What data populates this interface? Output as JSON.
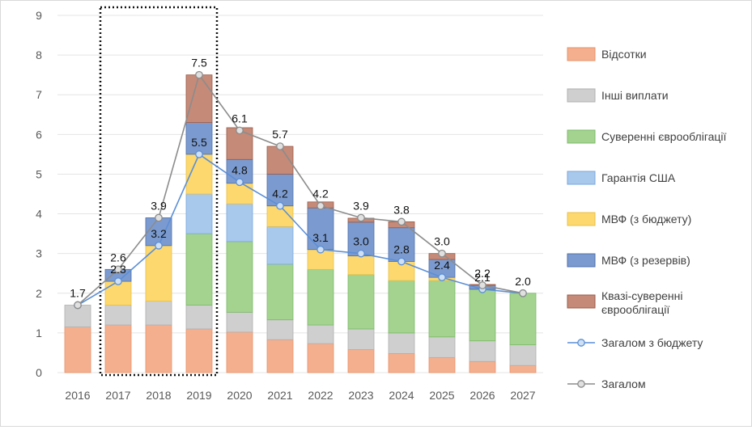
{
  "chart_data": {
    "type": "bar",
    "stacked": true,
    "categories": [
      "2016",
      "2017",
      "2018",
      "2019",
      "2020",
      "2021",
      "2022",
      "2023",
      "2024",
      "2025",
      "2026",
      "2027"
    ],
    "ylim": [
      0,
      9
    ],
    "yticks": [
      0,
      1,
      2,
      3,
      4,
      5,
      6,
      7,
      8,
      9
    ],
    "grid": true,
    "legend_position": "right",
    "highlight_categories": [
      "2017",
      "2018",
      "2019"
    ],
    "series": [
      {
        "key": "vidsotky",
        "name": "Відсотки",
        "color": "#f4b08e",
        "stroke": "#e8906a",
        "values": [
          1.15,
          1.2,
          1.2,
          1.1,
          1.02,
          0.83,
          0.73,
          0.58,
          0.48,
          0.38,
          0.28,
          0.18
        ]
      },
      {
        "key": "inshi",
        "name": "Інші виплати",
        "color": "#cfcfcf",
        "stroke": "#b0b0b0",
        "values": [
          0.55,
          0.5,
          0.6,
          0.6,
          0.5,
          0.5,
          0.47,
          0.52,
          0.52,
          0.52,
          0.52,
          0.52
        ]
      },
      {
        "key": "suverenni",
        "name": "Суверенні єврооблігації",
        "color": "#a3d38f",
        "stroke": "#7fb86b",
        "values": [
          0,
          0,
          0,
          1.8,
          1.78,
          1.4,
          1.4,
          1.37,
          1.32,
          1.42,
          1.3,
          1.3
        ]
      },
      {
        "key": "garantiya",
        "name": "Гарантія США",
        "color": "#a8c8ec",
        "stroke": "#7aa8dc",
        "values": [
          0,
          0,
          0,
          1.0,
          0.95,
          0.95,
          0,
          0,
          0,
          0,
          0,
          0
        ]
      },
      {
        "key": "mvf_budget",
        "name": "МВФ (з бюджету)",
        "color": "#fcd86f",
        "stroke": "#e8c04a",
        "values": [
          0,
          0.6,
          1.4,
          1.0,
          0.52,
          0.52,
          0.5,
          0.47,
          0.48,
          0.08,
          0,
          0
        ]
      },
      {
        "key": "mvf_reserve",
        "name": "МВФ (з резервів)",
        "color": "#7b9bd0",
        "stroke": "#4f6fa8",
        "values": [
          0,
          0.3,
          0.7,
          0.8,
          0.6,
          0.8,
          1.05,
          0.85,
          0.85,
          0.45,
          0.1,
          0
        ]
      },
      {
        "key": "kvazi",
        "name": "Квазі-суверенні єврооблігації",
        "color": "#c58a78",
        "stroke": "#9a5b48",
        "values": [
          0,
          0,
          0,
          1.2,
          0.8,
          0.7,
          0.15,
          0.1,
          0.15,
          0.15,
          0.02,
          0
        ]
      }
    ],
    "lines": [
      {
        "key": "budget_total",
        "name": "Загалом з бюджету",
        "color": "#5b8fd6",
        "marker_fill": "#cfe0f5",
        "values": [
          1.7,
          2.3,
          3.2,
          5.5,
          4.8,
          4.2,
          3.1,
          3.0,
          2.8,
          2.4,
          2.1,
          2.0
        ],
        "labels": [
          "",
          "2.3",
          "3.2",
          "5.5",
          "4.8",
          "4.2",
          "3.1",
          "3.0",
          "2.8",
          "2.4",
          "2.1",
          ""
        ]
      },
      {
        "key": "total",
        "name": "Загалом",
        "color": "#8c8c8c",
        "marker_fill": "#e0e0e0",
        "values": [
          1.7,
          2.6,
          3.9,
          7.5,
          6.1,
          5.7,
          4.2,
          3.9,
          3.8,
          3.0,
          2.2,
          2.0
        ],
        "labels": [
          "1.7",
          "2.6",
          "3.9",
          "7.5",
          "6.1",
          "5.7",
          "4.2",
          "3.9",
          "3.8",
          "3.0",
          "2.2",
          "2.0"
        ]
      }
    ],
    "legend_entries": [
      {
        "key": "vidsotky",
        "label": "Відсотки",
        "kind": "box"
      },
      {
        "key": "inshi",
        "label": "Інші виплати",
        "kind": "box"
      },
      {
        "key": "suverenni",
        "label": "Суверенні єврооблігації",
        "kind": "box"
      },
      {
        "key": "garantiya",
        "label": "Гарантія США",
        "kind": "box"
      },
      {
        "key": "mvf_budget",
        "label": "МВФ (з бюджету)",
        "kind": "box"
      },
      {
        "key": "mvf_reserve",
        "label": "МВФ (з резервів)",
        "kind": "box"
      },
      {
        "key": "kvazi",
        "label": "Квазі-суверенні єврооблігації",
        "label_lines": [
          "Квазі-суверенні",
          "єврооблігації"
        ],
        "kind": "box"
      },
      {
        "key": "budget_total",
        "label": "Загалом з бюджету",
        "kind": "line"
      },
      {
        "key": "total",
        "label": "Загалом",
        "kind": "line"
      }
    ]
  }
}
